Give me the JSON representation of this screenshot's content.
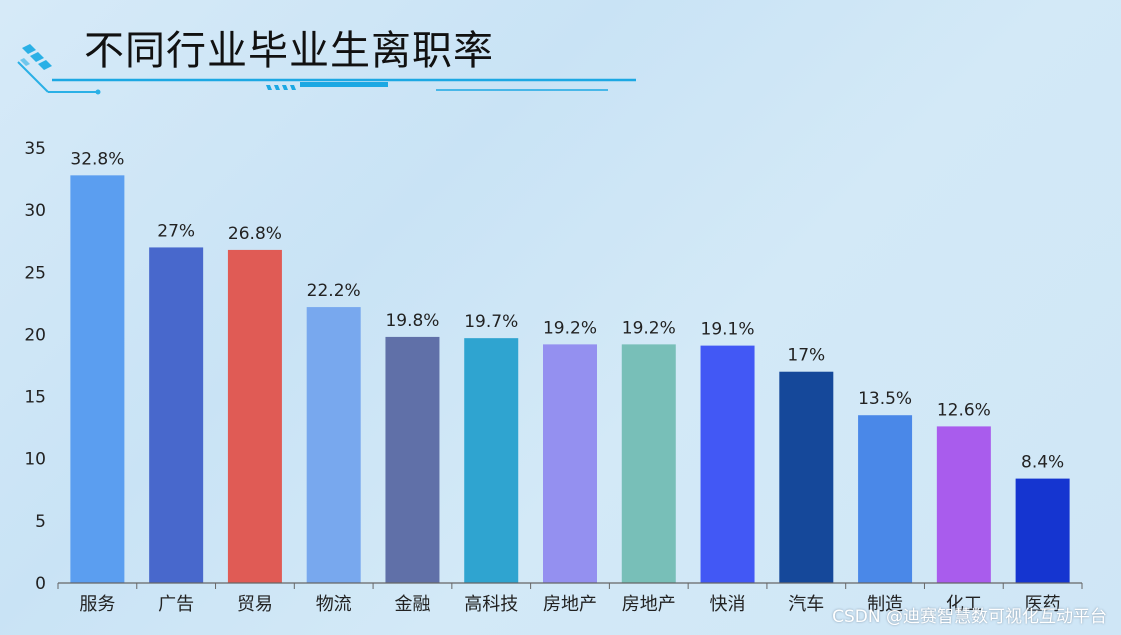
{
  "title": "不同行业毕业生离职率",
  "watermark": "CSDN @迪赛智慧数可视化互动平台",
  "chart_data": {
    "type": "bar",
    "title": "不同行业毕业生离职率",
    "xlabel": "",
    "ylabel": "",
    "ylim": [
      0,
      35
    ],
    "yticks": [
      0,
      5,
      10,
      15,
      20,
      25,
      30,
      35
    ],
    "grid": false,
    "categories": [
      "服务",
      "广告",
      "贸易",
      "物流",
      "金融",
      "高科技",
      "房地产",
      "房地产",
      "快消",
      "汽车",
      "制造",
      "化工",
      "医药"
    ],
    "values": [
      32.8,
      27,
      26.8,
      22.2,
      19.8,
      19.7,
      19.2,
      19.2,
      19.1,
      17,
      13.5,
      12.6,
      8.4
    ],
    "data_labels": [
      "32.8%",
      "27%",
      "26.8%",
      "22.2%",
      "19.8%",
      "19.7%",
      "19.2%",
      "19.2%",
      "19.1%",
      "17%",
      "13.5%",
      "12.6%",
      "8.4%"
    ],
    "colors": [
      "#5b9ef0",
      "#4868cc",
      "#e05b55",
      "#78a8ee",
      "#6070a8",
      "#2fa4d0",
      "#9490f0",
      "#78bfb8",
      "#4258f5",
      "#15489a",
      "#4a88e8",
      "#a95ced",
      "#1535d0"
    ]
  }
}
